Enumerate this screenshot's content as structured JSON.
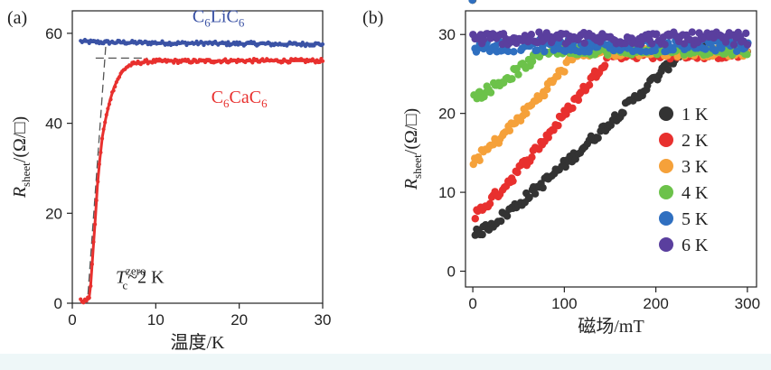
{
  "chart_data": [
    {
      "type": "line",
      "panel_label": "(a)",
      "xlabel": "温度/K",
      "ylabel": "R",
      "ylabel_sub": "sheet",
      "ylabel_unit": "/(Ω/□)",
      "xlim": [
        0,
        30
      ],
      "ylim": [
        0,
        65
      ],
      "xticks": [
        0,
        10,
        20,
        30
      ],
      "yticks": [
        0,
        20,
        40,
        60
      ],
      "annotation": {
        "T": "T",
        "sup": "zero",
        "sub": "c",
        "rest": "~2 K",
        "x_data": 5.2,
        "y_data": 4.5
      },
      "series": [
        {
          "name": "C6LiC6",
          "label_parts": [
            [
              "C",
              ""
            ],
            [
              "6",
              "sub"
            ],
            [
              "LiC",
              ""
            ],
            [
              "6",
              "sub"
            ]
          ],
          "color": "#3a52a5",
          "label_at": [
            17.5,
            62.5
          ],
          "x": [
            1,
            2,
            4,
            6,
            8,
            10,
            12,
            14,
            16,
            18,
            20,
            22,
            24,
            26,
            28,
            30
          ],
          "y": [
            58.2,
            58.1,
            58.0,
            58.0,
            57.9,
            57.9,
            57.8,
            57.8,
            57.8,
            57.7,
            57.7,
            57.7,
            57.6,
            57.6,
            57.6,
            57.6
          ]
        },
        {
          "name": "C6CaC6",
          "label_parts": [
            [
              "C",
              ""
            ],
            [
              "6",
              "sub"
            ],
            [
              "CaC",
              ""
            ],
            [
              "6",
              "sub"
            ]
          ],
          "color": "#e8302e",
          "label_at": [
            20,
            44.5
          ],
          "x": [
            1.0,
            1.5,
            2.0,
            2.2,
            2.5,
            2.8,
            3.0,
            3.3,
            3.6,
            4.0,
            4.5,
            5.0,
            5.5,
            6.0,
            6.5,
            7.0,
            8.0,
            9.0,
            10,
            12,
            15,
            18,
            21,
            24,
            27,
            30
          ],
          "y": [
            0.5,
            0.5,
            1.0,
            4.0,
            12.0,
            20.0,
            26.0,
            32.0,
            37.0,
            41.0,
            45.0,
            48.0,
            50.0,
            51.5,
            52.5,
            53.0,
            53.5,
            53.7,
            53.8,
            53.8,
            53.8,
            53.9,
            53.9,
            53.9,
            53.9,
            53.9
          ]
        }
      ],
      "guides": {
        "onset_level": 54.5,
        "tangent_top": [
          4.0,
          57.0
        ],
        "tangent_bottom": [
          1.8,
          0.0
        ],
        "horizontal_from": 2.8
      }
    },
    {
      "type": "scatter",
      "panel_label": "(b)",
      "xlabel": "磁场/mT",
      "ylabel": "R",
      "ylabel_sub": "sheet",
      "ylabel_unit": "/(Ω/□)",
      "xlim": [
        -8,
        310
      ],
      "ylim": [
        -2,
        33
      ],
      "xticks": [
        0,
        100,
        200,
        300
      ],
      "yticks": [
        0,
        10,
        20,
        30
      ],
      "series": [
        {
          "name": "1 K",
          "color": "#333333",
          "start": 4.5,
          "sat_field": 230,
          "sat_value": 28.0
        },
        {
          "name": "2 K",
          "color": "#e8302e",
          "start": 7.0,
          "sat_field": 150,
          "sat_value": 27.5
        },
        {
          "name": "3 K",
          "color": "#f5a13a",
          "start": 14.0,
          "sat_field": 115,
          "sat_value": 27.8
        },
        {
          "name": "4 K",
          "color": "#6cc24a",
          "start": 22.0,
          "sat_field": 80,
          "sat_value": 28.0
        },
        {
          "name": "5 K",
          "color": "#2f6fc0",
          "start": 28.3,
          "sat_field": 10,
          "sat_value": 28.6
        },
        {
          "name": "6 K",
          "color": "#5a3f9e",
          "start": 29.5,
          "sat_field": 5,
          "sat_value": 29.5
        }
      ]
    }
  ]
}
